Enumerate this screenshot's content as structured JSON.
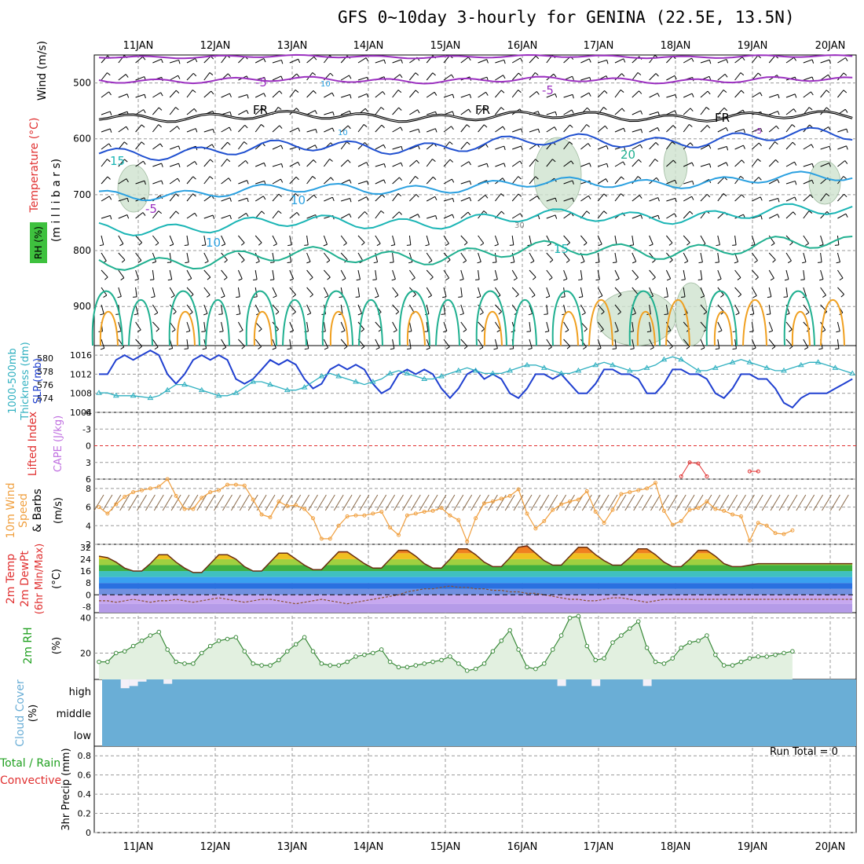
{
  "title": "GFS 0~10day 3-hourly for GENINA (22.5E, 13.5N)",
  "colors": {
    "rh_fill": "#cfe3cf",
    "temp_minus5": "#9b30c0",
    "temp_fr": "#000000",
    "temp_5": "#2050d0",
    "temp_10": "#2aa0e0",
    "temp_15": "#1bb5b5",
    "temp_20": "#20b090",
    "temp_25": "#f0a020",
    "temp_30": "#e06020",
    "slp": "#2040d0",
    "thickness": "#30b0c0",
    "cape": "#c070e0",
    "lifted": "#e03030",
    "wind10": "#f0a040",
    "cloud": "#6aaed6",
    "rh2m": "#20a020",
    "precip_total": "#20a020",
    "precip_conv": "#e03030"
  },
  "chart_data": {
    "type": "line",
    "x": [
      "11JAN",
      "12JAN",
      "13JAN",
      "14JAN",
      "15JAN",
      "16JAN",
      "17JAN",
      "18JAN",
      "19JAN",
      "20JAN"
    ],
    "panels": [
      {
        "id": "upper_air",
        "labels": [
          "Wind",
          "(m/s)",
          "Temperature",
          "(°C)",
          "RH",
          "(%)",
          "(m i l l i b a r s)"
        ],
        "yticks": [
          "500",
          "600",
          "700",
          "800",
          "900"
        ],
        "ylim": [
          450,
          970
        ],
        "contour_labels": [
          "-5",
          "-5",
          "10",
          "FR",
          "FR",
          "FR",
          "10",
          "-5",
          "-5",
          "10",
          "10",
          "30",
          "15",
          "15",
          "20"
        ],
        "isotherms": [
          {
            "name": "-5",
            "color": "#9b30c0",
            "base": 495,
            "amp": 4
          },
          {
            "name": "-5",
            "color": "#9b30c0",
            "base": 453,
            "amp": 2
          },
          {
            "name": "FR",
            "color": "#000000",
            "base": 560,
            "amp": 6
          },
          {
            "name": "5",
            "color": "#2050d0",
            "base": 625,
            "amp": 10
          },
          {
            "name": "10",
            "color": "#2aa0e0",
            "base": 700,
            "amp": 8
          },
          {
            "name": "15",
            "color": "#1bb5b5",
            "base": 760,
            "amp": 10
          },
          {
            "name": "20",
            "color": "#20b090",
            "base": 820,
            "amp": 12
          }
        ]
      },
      {
        "id": "slp_thickness",
        "labels": [
          "1000-500mb",
          "Thickness (dm)",
          "SLP (mb)"
        ],
        "left_ticks": [
          "580",
          "578",
          "576",
          "574"
        ],
        "right_ticks": [
          "1016",
          "1012",
          "1008",
          "1004"
        ],
        "slp_ylim": [
          1004,
          1018
        ],
        "slp": [
          1012,
          1012,
          1015,
          1016,
          1015,
          1016,
          1017,
          1016,
          1012,
          1010,
          1012,
          1015,
          1016,
          1015,
          1016,
          1015,
          1011,
          1010,
          1011,
          1013,
          1015,
          1014,
          1015,
          1014,
          1011,
          1009,
          1010,
          1013,
          1014,
          1013,
          1014,
          1013,
          1010,
          1008,
          1009,
          1012,
          1013,
          1012,
          1013,
          1012,
          1009,
          1007,
          1009,
          1012,
          1013,
          1011,
          1012,
          1011,
          1008,
          1007,
          1009,
          1012,
          1012,
          1011,
          1012,
          1010,
          1008,
          1008,
          1010,
          1013,
          1013,
          1012,
          1012,
          1011,
          1008,
          1008,
          1010,
          1013,
          1013,
          1012,
          1012,
          1011,
          1008,
          1007,
          1009,
          1012,
          1012,
          1011,
          1011,
          1009,
          1006,
          1005,
          1007,
          1008,
          1008,
          1008,
          1009,
          1010,
          1011
        ],
        "thickness": [
          574.5,
          574.5,
          574,
          574,
          574,
          573.8,
          573.6,
          574,
          575,
          576,
          576,
          575.5,
          575,
          574.5,
          574,
          574,
          574.5,
          575.5,
          576.5,
          576.5,
          576,
          575.5,
          575,
          575,
          575.5,
          576.5,
          577.5,
          578,
          577.5,
          577,
          576.5,
          576,
          576.5,
          577,
          578,
          578.5,
          578,
          577.5,
          577,
          577,
          577.5,
          578,
          578.5,
          579,
          578.5,
          578,
          578,
          578,
          578.5,
          579,
          579.5,
          579.5,
          579,
          578.5,
          578,
          578,
          578.5,
          579,
          579.5,
          580,
          579.5,
          579,
          578.5,
          578.5,
          579,
          579.5,
          580.5,
          581,
          580.5,
          579.5,
          578.5,
          578.5,
          579,
          579.5,
          580,
          580.5,
          580,
          579.5,
          579,
          578.5,
          578.5,
          579,
          579.5,
          580,
          580,
          579.5,
          579,
          578.5,
          578
        ]
      },
      {
        "id": "lifted_cape",
        "labels": [
          "Lifted Index",
          "CAPE (J/kg)"
        ],
        "yticks": [
          "-6",
          "-3",
          "0",
          "3",
          "6"
        ],
        "ylim": [
          -6,
          6
        ],
        "lifted_index": [
          null,
          null,
          null,
          null,
          null,
          null,
          null,
          null,
          null,
          null,
          null,
          null,
          null,
          null,
          null,
          null,
          null,
          null,
          null,
          null,
          null,
          null,
          null,
          null,
          null,
          null,
          null,
          null,
          null,
          null,
          null,
          null,
          null,
          null,
          null,
          null,
          null,
          null,
          null,
          null,
          null,
          null,
          null,
          null,
          null,
          null,
          null,
          null,
          null,
          null,
          null,
          null,
          null,
          null,
          null,
          null,
          null,
          null,
          null,
          null,
          null,
          null,
          null,
          null,
          null,
          null,
          null,
          null,
          5.5,
          3,
          3.2,
          5.5,
          null,
          null,
          null,
          null,
          4.6,
          4.6,
          null,
          null,
          null,
          null,
          null,
          null,
          null,
          null,
          null,
          null,
          null
        ]
      },
      {
        "id": "wind10m",
        "labels": [
          "10m Wind",
          "Speed",
          "& Barbs",
          "(m/s)"
        ],
        "yticks": [
          "8",
          "6",
          "4",
          "2"
        ],
        "ylim": [
          2,
          9
        ],
        "speed": [
          6,
          5.3,
          6.3,
          7.1,
          7.6,
          7.8,
          8,
          8.2,
          9,
          7.2,
          5.8,
          5.8,
          7,
          7.6,
          7.8,
          8.4,
          8.4,
          8.3,
          6.8,
          5.2,
          4.9,
          6.6,
          6.1,
          6.2,
          5.8,
          4.8,
          2.6,
          2.6,
          4,
          5,
          5.1,
          5.1,
          5.3,
          5.5,
          3.8,
          3,
          5.1,
          5.3,
          5.5,
          5.6,
          5.9,
          5.1,
          4.6,
          2.3,
          4.8,
          6.4,
          6.6,
          6.9,
          7.2,
          7.9,
          5.3,
          3.7,
          4.5,
          5.7,
          6.3,
          6.6,
          6.8,
          7.7,
          5.5,
          4.3,
          5.7,
          7.4,
          7.6,
          7.8,
          8,
          8.6,
          5.6,
          4.1,
          4.5,
          5.7,
          5.9,
          6.6,
          5.8,
          5.6,
          5.2,
          5,
          2.4,
          4.3,
          4,
          3.2,
          3.1,
          3.5,
          null,
          null,
          null,
          null,
          null,
          null,
          null
        ]
      },
      {
        "id": "temp2m",
        "labels": [
          "2m Temp",
          "2m DewPt",
          "(6hr Min/Max)",
          "(°C)"
        ],
        "yticks": [
          "32",
          "24",
          "16",
          "8",
          "0",
          "-8"
        ],
        "ylim": [
          -12,
          34
        ],
        "temp": [
          26,
          25,
          22,
          18,
          16,
          16,
          21,
          27,
          27,
          22,
          18,
          15,
          15,
          21,
          27,
          27,
          24,
          19,
          16,
          16,
          22,
          28,
          28,
          24,
          20,
          17,
          17,
          23,
          29,
          29,
          25,
          21,
          18,
          18,
          24,
          30,
          30,
          26,
          21,
          18,
          18,
          24,
          31,
          31,
          27,
          22,
          19,
          19,
          25,
          32,
          33,
          28,
          23,
          20,
          20,
          26,
          32,
          32,
          27,
          23,
          20,
          20,
          25,
          31,
          31,
          27,
          22,
          19,
          19,
          24,
          30,
          30,
          26,
          21,
          19,
          19,
          20,
          21,
          21,
          21,
          21,
          21,
          21,
          21,
          21,
          21,
          21,
          21,
          21
        ],
        "dewpoint": [
          -4,
          -4,
          -5,
          -4,
          -3,
          -4,
          -5,
          -4,
          -4,
          -3,
          -4,
          -5,
          -4,
          -3,
          -2,
          -3,
          -4,
          -5,
          -4,
          -3,
          -3,
          -4,
          -5,
          -6,
          -5,
          -4,
          -3,
          -4,
          -5,
          -6,
          -5,
          -4,
          -3,
          -2,
          -1,
          0,
          2,
          3,
          4,
          4,
          5,
          6,
          5,
          5,
          4,
          4,
          3,
          3,
          2,
          2,
          1,
          1,
          0,
          -1,
          -2,
          -3,
          -3,
          -4,
          -4,
          -3,
          -2,
          -2,
          -3,
          -4,
          -5,
          -4,
          -3,
          -3,
          -3,
          -3,
          -3,
          -3,
          -3,
          -3,
          -3,
          -3,
          -3,
          -3,
          -3,
          -3,
          -3,
          -3,
          -3,
          -3,
          -3,
          -3,
          -3,
          -3,
          -3
        ]
      },
      {
        "id": "rh2m",
        "labels": [
          "2m RH",
          "(%)"
        ],
        "yticks": [
          "40",
          "20"
        ],
        "ylim": [
          5,
          43
        ],
        "rh": [
          15,
          15,
          20,
          21,
          24,
          27,
          30,
          32,
          22,
          15,
          14,
          14,
          20,
          24,
          27,
          28,
          29,
          21,
          14,
          13,
          13,
          16,
          21,
          25,
          29,
          21,
          14,
          13,
          13,
          15,
          18,
          19,
          20,
          22,
          15,
          12,
          12,
          13,
          14,
          15,
          16,
          18,
          14,
          10,
          11,
          14,
          21,
          27,
          33,
          22,
          12,
          11,
          14,
          22,
          30,
          40,
          41,
          24,
          16,
          17,
          26,
          30,
          34,
          38,
          23,
          15,
          14,
          17,
          23,
          26,
          27,
          30,
          19,
          13,
          13,
          15,
          17,
          18,
          18,
          19,
          20,
          21,
          null,
          null,
          null,
          null,
          null,
          null,
          null
        ]
      },
      {
        "id": "cloud",
        "labels": [
          "Cloud Cover",
          "(%)"
        ],
        "levels": [
          "high",
          "middle",
          "low"
        ],
        "high": [
          100,
          100,
          100,
          60,
          70,
          90,
          100,
          100,
          80,
          100,
          100,
          100,
          100,
          100,
          100,
          100,
          100,
          100,
          100,
          100,
          100,
          100,
          100,
          100,
          100,
          100,
          100,
          100,
          100,
          100,
          100,
          100,
          100,
          100,
          100,
          100,
          100,
          100,
          100,
          100,
          100,
          100,
          100,
          100,
          100,
          100,
          100,
          100,
          100,
          100,
          100,
          100,
          100,
          100,
          70,
          100,
          100,
          100,
          70,
          100,
          100,
          100,
          100,
          100,
          70,
          100,
          100,
          100,
          100,
          100,
          100,
          100,
          100,
          100,
          100,
          100,
          100,
          100,
          100,
          100,
          100,
          100,
          100,
          100,
          100,
          100,
          100,
          100,
          100
        ]
      },
      {
        "id": "precip",
        "labels": [
          "Total / Rain",
          "Convective",
          "3hr Precip (mm)"
        ],
        "yticks": [
          "0.8",
          "0.6",
          "0.4",
          "0.2",
          "0"
        ],
        "ylim": [
          0,
          0.9
        ],
        "run_total": "Run Total = 0"
      }
    ]
  }
}
